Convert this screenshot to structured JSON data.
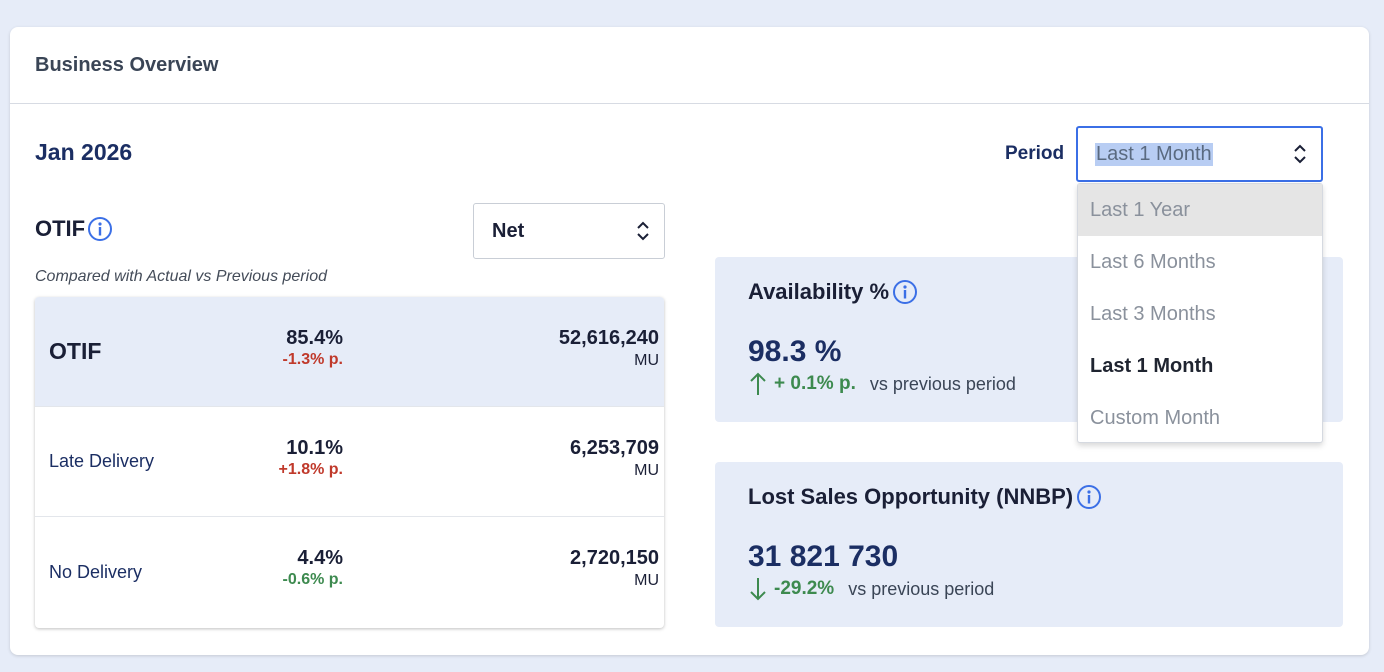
{
  "header": {
    "title": "Business Overview"
  },
  "month": "Jan 2026",
  "period": {
    "label": "Period",
    "selected": "Last 1 Month",
    "options": [
      "Last 1 Year",
      "Last 6 Months",
      "Last 3 Months",
      "Last 1 Month",
      "Custom Month"
    ]
  },
  "otif": {
    "title": "OTIF",
    "select_value": "Net",
    "note": "Compared with Actual vs Previous period",
    "rows": [
      {
        "label": "OTIF",
        "pct": "85.4%",
        "delta": "-1.3% p.",
        "value": "52,616,240",
        "unit": "MU"
      },
      {
        "label": "Late Delivery",
        "pct": "10.1%",
        "delta": "+1.8% p.",
        "value": "6,253,709",
        "unit": "MU"
      },
      {
        "label": "No Delivery",
        "pct": "4.4%",
        "delta": "-0.6% p.",
        "value": "2,720,150",
        "unit": "MU"
      }
    ]
  },
  "availability": {
    "title": "Availability %",
    "value": "98.3 %",
    "delta": "+ 0.1% p.",
    "vs": "vs previous period"
  },
  "lost_sales": {
    "title": "Lost Sales Opportunity (NNBP)",
    "value": "31 821 730",
    "delta": "-29.2%",
    "vs": "vs previous period"
  },
  "colors": {
    "accent": "#3b6fe6",
    "navy": "#1b2e63",
    "negative": "#c0392b",
    "positive": "#3d8a4f",
    "panel": "#e6ecf8"
  }
}
